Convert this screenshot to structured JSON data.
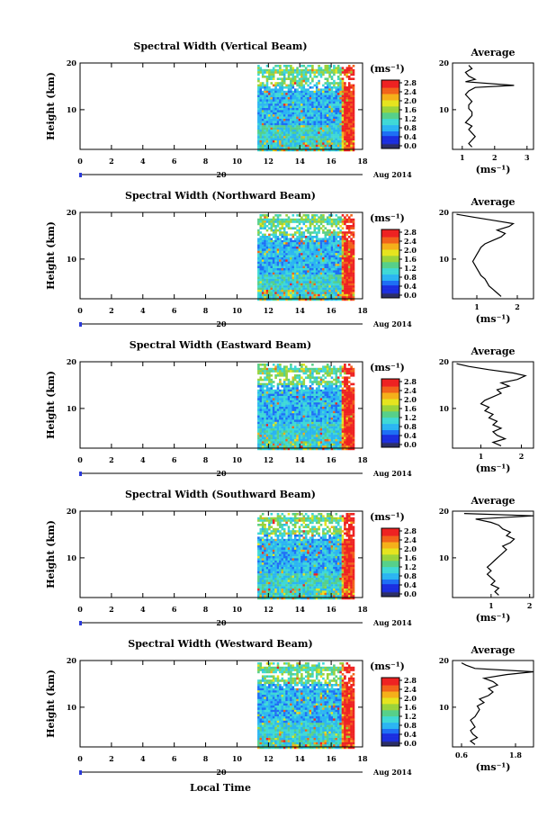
{
  "colors": {
    "ink": "#000000",
    "accent_blue": "#2b3bd8",
    "colormap": [
      "#2a2f8a",
      "#1b2ee0",
      "#1e6ff5",
      "#2bb5f2",
      "#3fd9d6",
      "#57d08a",
      "#9ad33b",
      "#e6e41e",
      "#f5b01a",
      "#f2631a",
      "#ee2222"
    ],
    "cbar_bottom": "#2c2f66"
  },
  "labels": {
    "ylabel": "Height (km)",
    "xlabel": "Local Time",
    "date": "Aug 2014",
    "day": "20",
    "cbar_unit": "(ms⁻¹)",
    "avg_title": "Average",
    "avg_unit": "(ms⁻¹)"
  },
  "chart_data": [
    {
      "type": "heatmap",
      "title": "Spectral Width (Vertical Beam)",
      "x_ticks": [
        "0",
        "2",
        "4",
        "6",
        "8",
        "10",
        "12",
        "14",
        "16",
        "18"
      ],
      "y_ticks": [
        "20",
        "10"
      ],
      "xlim": [
        0,
        18
      ],
      "ylim": [
        1.5,
        20
      ],
      "data_x_range": [
        11.3,
        17.4
      ],
      "colorbar_ticks": [
        "2.8",
        "2.4",
        "2.0",
        "1.6",
        "1.2",
        "0.8",
        "0.4",
        "0.0"
      ],
      "colorbar_range": [
        0,
        2.8
      ],
      "average": {
        "x_ticks": [
          "1",
          "2",
          "3"
        ],
        "xlim": [
          0.7,
          3.2
        ],
        "x": [
          1.3,
          1.2,
          1.3,
          1.4,
          1.3,
          1.2,
          1.3,
          1.1,
          1.2,
          1.3,
          1.3,
          1.2,
          1.2,
          1.3,
          1.2,
          1.1,
          1.2,
          1.4,
          2.6,
          1.1,
          1.4,
          1.2,
          1.1,
          1.3,
          1.2
        ],
        "y": [
          2,
          2.75,
          3.5,
          4.25,
          5,
          5.75,
          6.5,
          7.25,
          8,
          8.75,
          9.5,
          10.25,
          11,
          11.75,
          12.5,
          13.25,
          14,
          14.75,
          15.2,
          16,
          16.5,
          17.2,
          18,
          18.8,
          19.5
        ]
      }
    },
    {
      "type": "heatmap",
      "title": "Spectral Width (Northward Beam)",
      "x_ticks": [
        "0",
        "2",
        "4",
        "6",
        "8",
        "10",
        "12",
        "14",
        "16",
        "18"
      ],
      "y_ticks": [
        "20",
        "10"
      ],
      "xlim": [
        0,
        18
      ],
      "ylim": [
        1.5,
        20
      ],
      "data_x_range": [
        11.3,
        17.4
      ],
      "colorbar_ticks": [
        "2.8",
        "2.4",
        "2.0",
        "1.6",
        "1.2",
        "0.8",
        "0.4",
        "0.0"
      ],
      "colorbar_range": [
        0,
        2.8
      ],
      "average": {
        "x_ticks": [
          "1",
          "2"
        ],
        "xlim": [
          0.4,
          2.4
        ],
        "x": [
          1.6,
          1.5,
          1.4,
          1.3,
          1.25,
          1.2,
          1.1,
          1.05,
          1.0,
          0.95,
          0.9,
          0.95,
          1.0,
          1.05,
          1.1,
          1.2,
          1.4,
          1.6,
          1.7,
          1.5,
          1.8,
          1.9,
          1.4,
          0.9,
          0.5
        ],
        "y": [
          2,
          2.75,
          3.5,
          4.25,
          5,
          5.75,
          6.5,
          7.25,
          8,
          8.75,
          9.5,
          10.25,
          11,
          11.75,
          12.5,
          13.25,
          14,
          14.75,
          15.5,
          16.2,
          17,
          17.6,
          18.3,
          19,
          19.6
        ]
      }
    },
    {
      "type": "heatmap",
      "title": "Spectral Width (Eastward Beam)",
      "x_ticks": [
        "0",
        "2",
        "4",
        "6",
        "8",
        "10",
        "12",
        "14",
        "16",
        "18"
      ],
      "y_ticks": [
        "20",
        "10"
      ],
      "xlim": [
        0,
        18
      ],
      "ylim": [
        1.5,
        20
      ],
      "data_x_range": [
        11.3,
        17.4
      ],
      "colorbar_ticks": [
        "2.8",
        "2.4",
        "2.0",
        "1.6",
        "1.2",
        "0.8",
        "0.4",
        "0.0"
      ],
      "colorbar_range": [
        0,
        2.8
      ],
      "average": {
        "x_ticks": [
          "1",
          "2"
        ],
        "xlim": [
          0.3,
          2.3
        ],
        "x": [
          1.5,
          1.3,
          1.6,
          1.4,
          1.3,
          1.5,
          1.3,
          1.4,
          1.2,
          1.3,
          1.1,
          1.2,
          1.0,
          1.1,
          1.3,
          1.5,
          1.4,
          1.7,
          1.5,
          1.9,
          2.1,
          1.8,
          1.2,
          0.7,
          0.4
        ],
        "y": [
          2,
          2.75,
          3.5,
          4.25,
          5,
          5.75,
          6.5,
          7.25,
          8,
          8.75,
          9.5,
          10.25,
          11,
          11.75,
          12.5,
          13.25,
          14,
          14.75,
          15.5,
          16.2,
          17,
          17.6,
          18.3,
          19,
          19.6
        ]
      }
    },
    {
      "type": "heatmap",
      "title": "Spectral Width (Southward Beam)",
      "x_ticks": [
        "0",
        "2",
        "4",
        "6",
        "8",
        "10",
        "12",
        "14",
        "16",
        "18"
      ],
      "y_ticks": [
        "20",
        "10"
      ],
      "xlim": [
        0,
        18
      ],
      "ylim": [
        1.5,
        20
      ],
      "data_x_range": [
        11.3,
        17.4
      ],
      "colorbar_ticks": [
        "2.8",
        "2.4",
        "2.0",
        "1.6",
        "1.2",
        "0.8",
        "0.4",
        "0.0"
      ],
      "colorbar_range": [
        0,
        2.8
      ],
      "average": {
        "x_ticks": [
          "1",
          "2"
        ],
        "xlim": [
          0.0,
          2.1
        ],
        "x": [
          1.2,
          1.1,
          1.2,
          1.0,
          1.1,
          1.0,
          0.9,
          1.0,
          0.9,
          1.0,
          1.1,
          1.2,
          1.3,
          1.4,
          1.3,
          1.5,
          1.6,
          1.4,
          1.5,
          1.3,
          1.2,
          1.0,
          0.6,
          2.1,
          0.3
        ],
        "y": [
          2,
          2.75,
          3.5,
          4.25,
          5,
          5.75,
          6.5,
          7.25,
          8,
          8.75,
          9.5,
          10.25,
          11,
          11.75,
          12.5,
          13.25,
          14,
          14.75,
          15.5,
          16.2,
          17,
          17.6,
          18.3,
          19,
          19.5
        ]
      }
    },
    {
      "type": "heatmap",
      "title": "Spectral Width (Westward Beam)",
      "x_ticks": [
        "0",
        "2",
        "4",
        "6",
        "8",
        "10",
        "12",
        "14",
        "16",
        "18"
      ],
      "y_ticks": [
        "20",
        "10"
      ],
      "xlim": [
        0,
        18
      ],
      "ylim": [
        1.5,
        20
      ],
      "data_x_range": [
        11.3,
        17.4
      ],
      "colorbar_ticks": [
        "2.8",
        "2.4",
        "2.0",
        "1.6",
        "1.2",
        "0.8",
        "0.4",
        "0.0"
      ],
      "colorbar_range": [
        0,
        2.8
      ],
      "average": {
        "x_ticks": [
          "0.6",
          "1.8"
        ],
        "xlim": [
          0.4,
          2.2
        ],
        "x": [
          0.9,
          0.8,
          0.95,
          0.85,
          0.8,
          0.9,
          0.85,
          0.8,
          0.9,
          0.95,
          1.0,
          0.95,
          1.1,
          1.0,
          1.2,
          1.3,
          1.2,
          1.4,
          1.3,
          1.1,
          1.6,
          2.2,
          0.9,
          0.7,
          0.6
        ],
        "y": [
          2,
          2.75,
          3.5,
          4.25,
          5,
          5.75,
          6.5,
          7.25,
          8,
          8.75,
          9.5,
          10.25,
          11,
          11.75,
          12.5,
          13.25,
          14,
          14.75,
          15.5,
          16.2,
          17,
          17.6,
          18.3,
          19,
          19.5
        ]
      }
    }
  ]
}
